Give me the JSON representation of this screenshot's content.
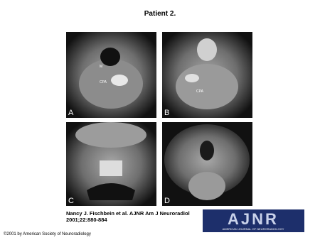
{
  "header": {
    "title": "Patient 2."
  },
  "panels": [
    {
      "label": "A",
      "annotations": [
        "M",
        "CPA"
      ]
    },
    {
      "label": "B",
      "annotations": [
        "CPA"
      ]
    },
    {
      "label": "C",
      "annotations": []
    },
    {
      "label": "D",
      "annotations": []
    }
  ],
  "citation": {
    "line1": "Nancy J. Fischbein et al. AJNR Am J Neuroradiol",
    "line2": "2001;22:880-884"
  },
  "logo": {
    "name": "AJNR",
    "subtitle": "AMERICAN JOURNAL OF NEURORADIOLOGY"
  },
  "footer": {
    "copyright": "©2001 by American Society of Neuroradiology"
  }
}
